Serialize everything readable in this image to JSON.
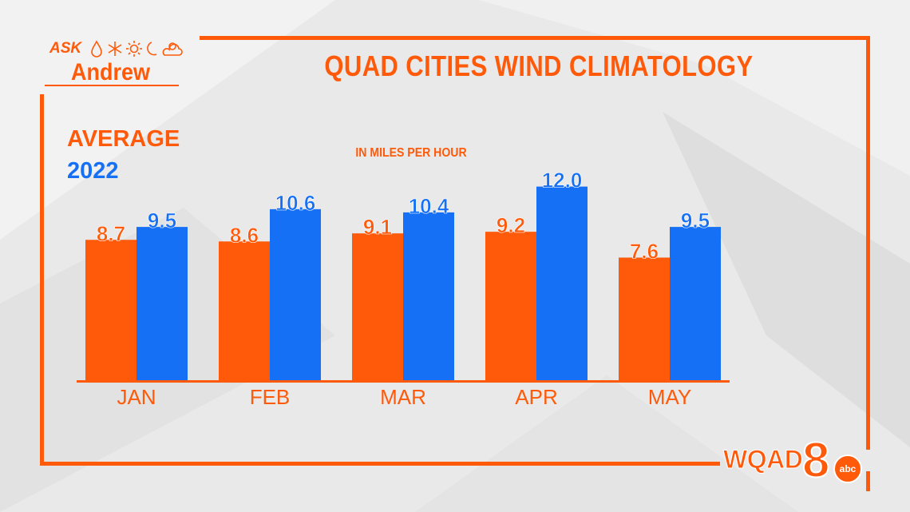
{
  "header": {
    "logo_top": "ASK",
    "logo_main": "Andrew",
    "title": "QUAD CITIES WIND CLIMATOLOGY",
    "subtitle": "IN MILES PER HOUR"
  },
  "legend": {
    "average_label": "AVERAGE",
    "year_label": "2022"
  },
  "station": {
    "call_letters": "WQAD",
    "channel": "8",
    "network": "abc"
  },
  "colors": {
    "accent": "#ff5a0a",
    "series_average": "#ff5a0a",
    "series_2022": "#1570f5",
    "background": "#e9e9e9"
  },
  "icons": [
    "raindrop-icon",
    "snowflake-icon",
    "sun-icon",
    "moon-icon",
    "partly-cloudy-icon"
  ],
  "chart_data": {
    "type": "bar",
    "title": "QUAD CITIES WIND CLIMATOLOGY",
    "subtitle": "IN MILES PER HOUR",
    "categories": [
      "JAN",
      "FEB",
      "MAR",
      "APR",
      "MAY"
    ],
    "series": [
      {
        "name": "AVERAGE",
        "color": "#ff5a0a",
        "values": [
          8.7,
          8.6,
          9.1,
          9.2,
          7.6
        ]
      },
      {
        "name": "2022",
        "color": "#1570f5",
        "values": [
          9.5,
          10.6,
          10.4,
          12.0,
          9.5
        ]
      }
    ],
    "data_labels": [
      [
        "8.7",
        "8.6",
        "9.1",
        "9.2",
        "7.6"
      ],
      [
        "9.5",
        "10.6",
        "10.4",
        "12.0",
        "9.5"
      ]
    ],
    "ylim": [
      0,
      14
    ],
    "grid": false,
    "legend_placement": "top-left"
  }
}
